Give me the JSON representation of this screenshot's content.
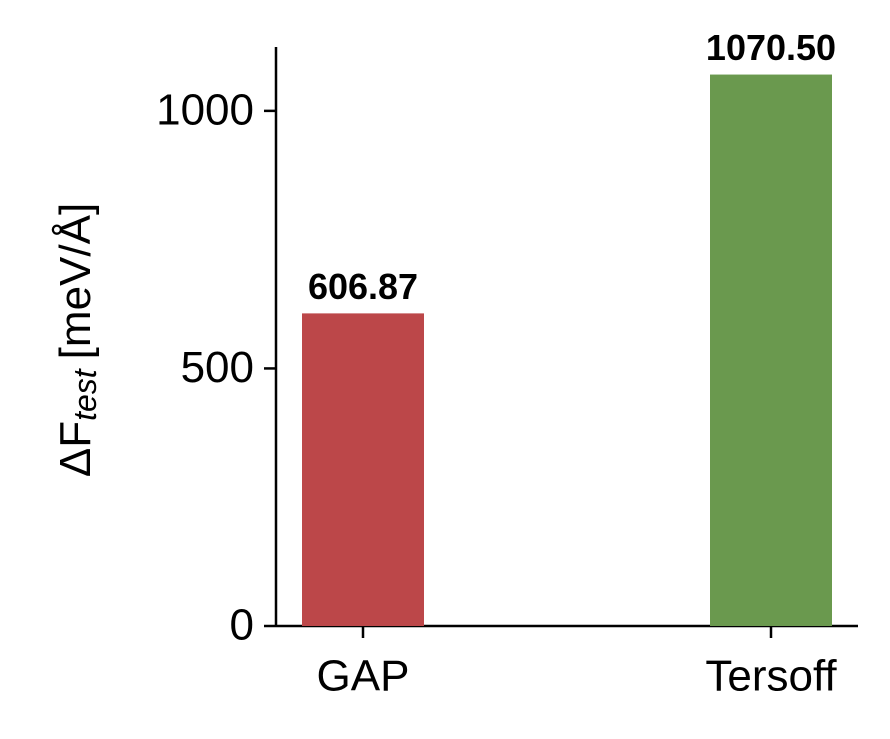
{
  "chart_data": {
    "type": "bar",
    "ylabel": {
      "main": "ΔF",
      "sub": "test",
      "unit": "[meV/Å]"
    },
    "categories": [
      "GAP",
      "Tersoff"
    ],
    "values": [
      606.87,
      1070.5
    ],
    "value_labels": [
      "606.87",
      "1070.50"
    ],
    "colors": [
      "#bc4749",
      "#6a994e"
    ],
    "ylim": [
      0,
      1124
    ],
    "yticks": [
      0,
      500,
      1000
    ],
    "grid": false
  }
}
